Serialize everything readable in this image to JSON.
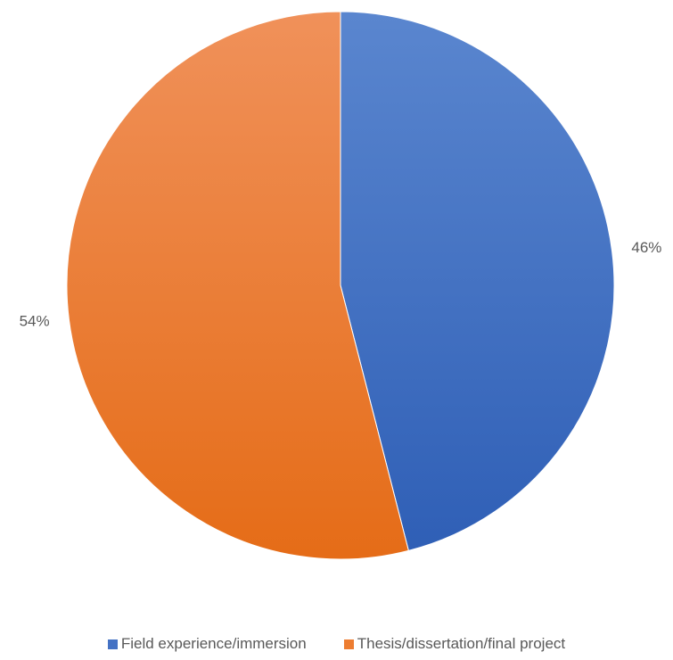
{
  "chart_data": {
    "type": "pie",
    "title": "",
    "categories": [
      "Field experience/immersion",
      "Thesis/dissertation/final project"
    ],
    "values": [
      46,
      54
    ],
    "labels": [
      "46%",
      "54%"
    ],
    "colors": [
      "#4472C4",
      "#ED7D31"
    ],
    "start_angle_deg": 0,
    "direction": "clockwise",
    "legend_position": "bottom"
  }
}
